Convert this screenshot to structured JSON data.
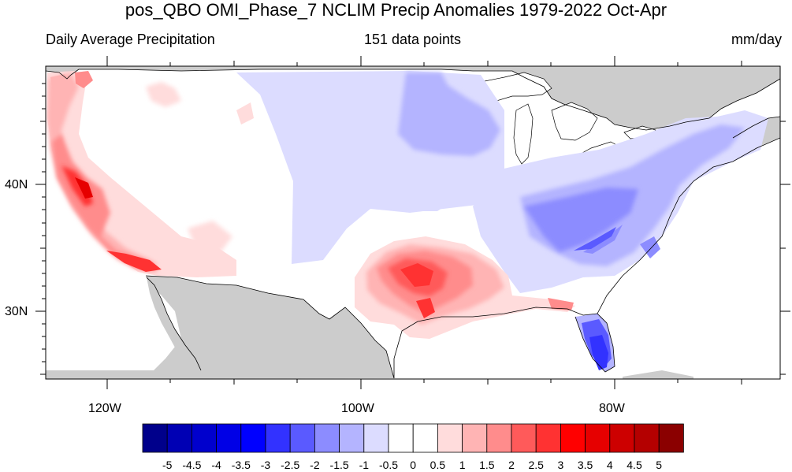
{
  "title": "pos_QBO OMI_Phase_7 NCLIM Precip Anomalies 1979-2022 Oct-Apr",
  "subtitle_left": "Daily Average Precipitation",
  "subtitle_center": "151 data points",
  "subtitle_right": "mm/day",
  "lat_labels": [
    "40N",
    "30N"
  ],
  "lon_labels": [
    "120W",
    "100W",
    "80W"
  ],
  "colorbar": {
    "colors": [
      "#00008b",
      "#0000b4",
      "#0000cd",
      "#0000e6",
      "#0000ff",
      "#3232ff",
      "#5a5aff",
      "#8c8cff",
      "#b4b4ff",
      "#dcdcff",
      "#ffffff",
      "#ffffff",
      "#ffdcdc",
      "#ffb4b4",
      "#ff8c8c",
      "#ff5a5a",
      "#ff3232",
      "#ff0000",
      "#e60000",
      "#cd0000",
      "#b40000",
      "#8b0000"
    ],
    "tick_labels": [
      "-5",
      "-4.5",
      "-4",
      "-3.5",
      "-3",
      "-2.5",
      "-2",
      "-1.5",
      "-1",
      "-0.5",
      "0",
      "0.5",
      "1",
      "1.5",
      "2",
      "2.5",
      "3",
      "3.5",
      "4",
      "4.5",
      "5"
    ]
  },
  "map_colors": {
    "land_masked": "#cccccc",
    "ocean": "#ffffff",
    "neutral": "#ffffff"
  }
}
